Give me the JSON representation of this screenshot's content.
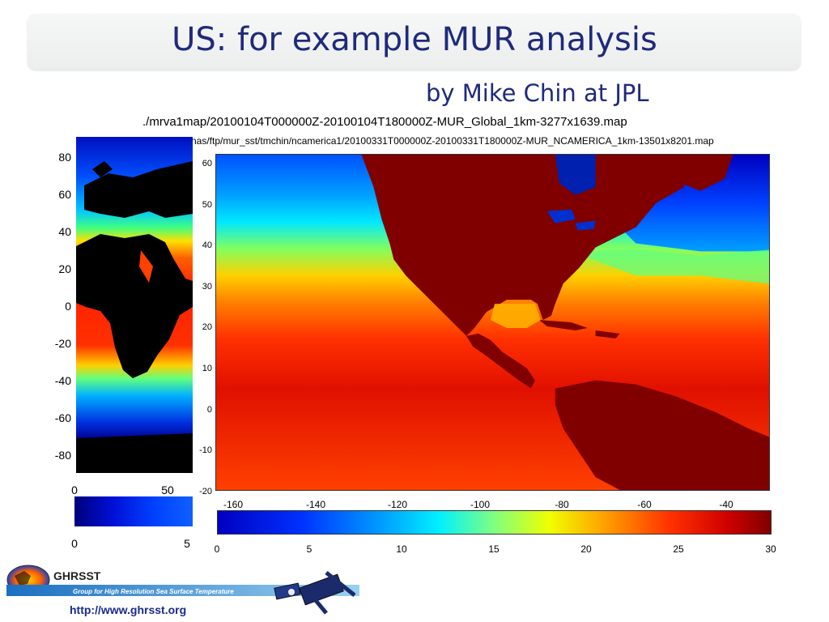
{
  "slide": {
    "title": "US: for example MUR analysis",
    "subtitle": "by Mike Chin at JPL",
    "path_global": "./mrva1map/20100104T000000Z-20100104T180000Z-MUR_Global_1km-3277x1639.map",
    "path_regional": "nas/ftp/mur_sst/tmchin/ncamerica1/20100331T000000Z-20100331T180000Z-MUR_NCAMERICA_1km-13501x8201.map"
  },
  "left_map": {
    "y_ticks": [
      "80",
      "60",
      "40",
      "20",
      "0",
      "-20",
      "-40",
      "-60",
      "-80"
    ],
    "x_ticks": [
      "0",
      "50"
    ],
    "colorbar_ticks": [
      "0",
      "5"
    ]
  },
  "right_map": {
    "y_ticks": [
      "60",
      "50",
      "40",
      "30",
      "20",
      "10",
      "0",
      "-10",
      "-20"
    ],
    "x_ticks": [
      "-160",
      "-140",
      "-120",
      "-100",
      "-80",
      "-60",
      "-40"
    ],
    "colorbar_ticks": [
      "0",
      "5",
      "10",
      "15",
      "20",
      "25",
      "30"
    ]
  },
  "footer": {
    "logo_text": "GHRSST",
    "logo_tagline": "Group for High Resolution Sea Surface Temperature",
    "url": "http://www.ghrsst.org"
  },
  "colors": {
    "title": "#1f2a7a",
    "land": "#800000",
    "cold": "#0000a0",
    "warm": "#e00000"
  }
}
